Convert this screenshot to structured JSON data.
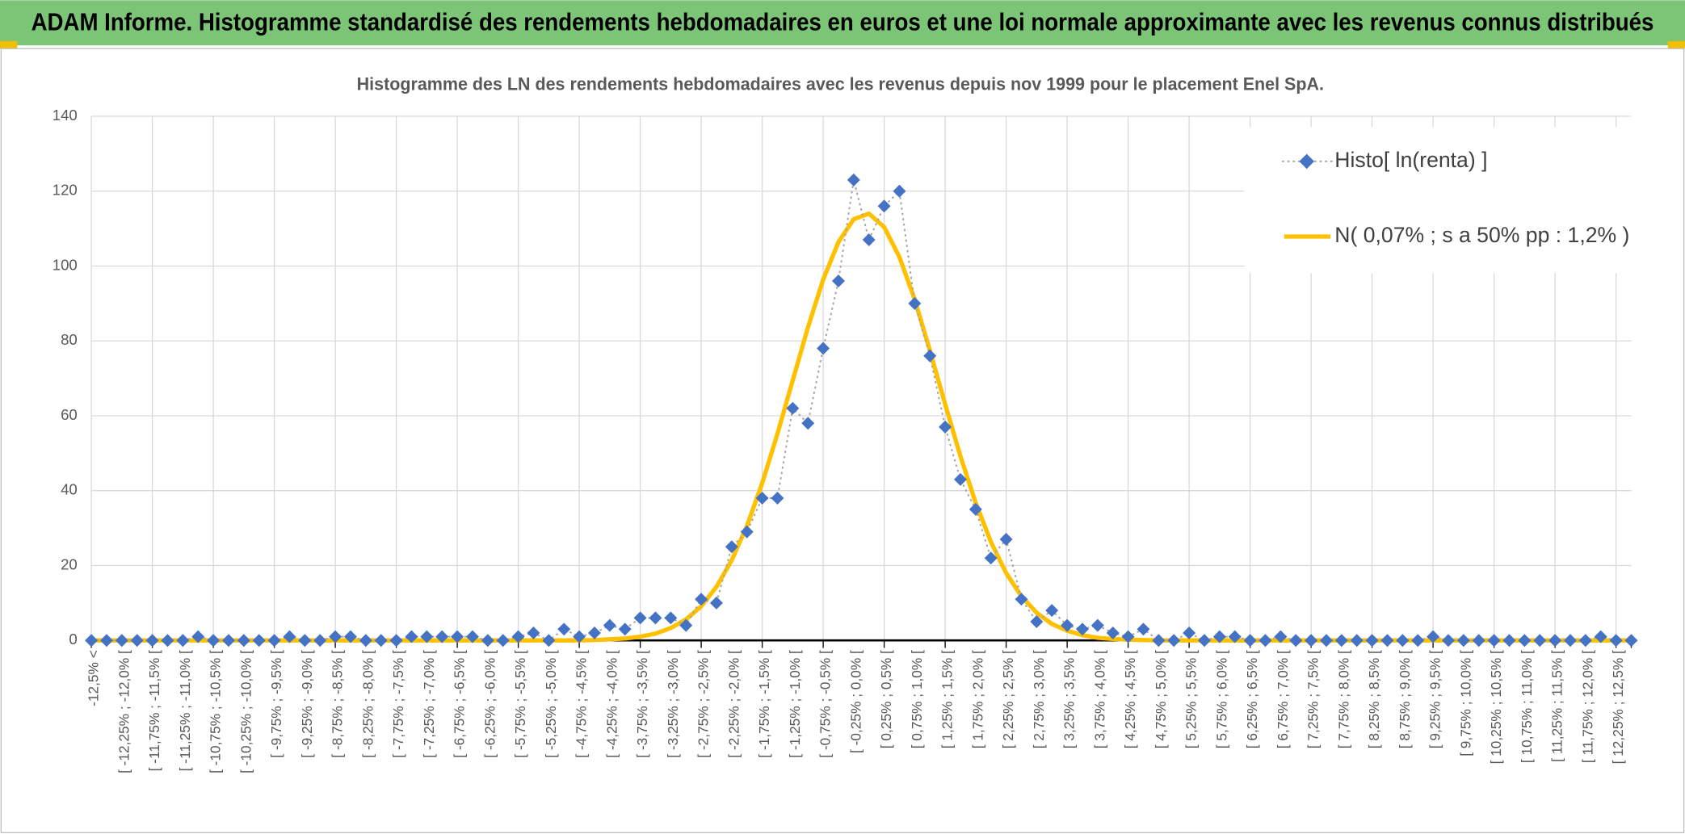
{
  "header": {
    "title": "ADAM Informe. Histogramme standardisé des rendements hebdomadaires en euros et une loi normale approximante avec les revenus connus distribués"
  },
  "chart_data": {
    "type": "line",
    "title": "Histogramme des LN des rendements hebdomadaires avec les revenus depuis nov 1999 pour le placement Enel SpA.",
    "categories": [
      "-12,5% <",
      null,
      "[ -12,25% ; -12,0% [",
      null,
      "[ -11,75% ; -11,5% [",
      null,
      "[ -11,25% ; -11,0% [",
      null,
      "[ -10,75% ; -10,5% [",
      null,
      "[ -10,25% ; -10,0% [",
      null,
      "[ -9,75% ; -9,5% [",
      null,
      "[ -9,25% ; -9,0% [",
      null,
      "[ -8,75% ; -8,5% [",
      null,
      "[ -8,25% ; -8,0% [",
      null,
      "[ -7,75% ; -7,5% [",
      null,
      "[ -7,25% ; -7,0% [",
      null,
      "[ -6,75% ; -6,5% [",
      null,
      "[ -6,25% ; -6,0% [",
      null,
      "[ -5,75% ; -5,5% [",
      null,
      "[ -5,25% ; -5,0% [",
      null,
      "[ -4,75% ; -4,5% [",
      null,
      "[ -4,25% ; -4,0% [",
      null,
      "[ -3,75% ; -3,5% [",
      null,
      "[ -3,25% ; -3,0% [",
      null,
      "[ -2,75% ; -2,5% [",
      null,
      "[ -2,25% ; -2,0% [",
      null,
      "[ -1,75% ; -1,5% [",
      null,
      "[ -1,25% ; -1,0% [",
      null,
      "[ -0,75% ; -0,5% [",
      null,
      "[ -0,25% ; 0,0% [",
      null,
      "[ 0,25% ; 0,5% [",
      null,
      "[ 0,75% ; 1,0% [",
      null,
      "[ 1,25% ; 1,5% [",
      null,
      "[ 1,75% ; 2,0% [",
      null,
      "[ 2,25% ; 2,5% [",
      null,
      "[ 2,75% ; 3,0% [",
      null,
      "[ 3,25% ; 3,5% [",
      null,
      "[ 3,75% ; 4,0% [",
      null,
      "[ 4,25% ; 4,5% [",
      null,
      "[ 4,75% ; 5,0% [",
      null,
      "[ 5,25% ; 5,5% [",
      null,
      "[ 5,75% ; 6,0% [",
      null,
      "[ 6,25% ; 6,5% [",
      null,
      "[ 6,75% ; 7,0% [",
      null,
      "[ 7,25% ; 7,5% [",
      null,
      "[ 7,75% ; 8,0% [",
      null,
      "[ 8,25% ; 8,5% [",
      null,
      "[ 8,75% ; 9,0% [",
      null,
      "[ 9,25% ; 9,5% [",
      null,
      "[ 9,75% ; 10,0% [",
      null,
      "[ 10,25% ; 10,5% [",
      null,
      "[ 10,75% ; 11,0% [",
      null,
      "[ 11,25% ; 11,5% [",
      null,
      "[ 11,75% ; 12,0% [",
      null,
      "[ 12,25% ; 12,5% [",
      null
    ],
    "series": [
      {
        "name": "Histo[ ln(renta) ]",
        "color": "#4472c4",
        "line_color": "#a5a5a5",
        "marker": "diamond",
        "line_style": "dotted",
        "values": [
          0,
          0,
          0,
          0,
          0,
          0,
          0,
          1,
          0,
          0,
          0,
          0,
          0,
          1,
          0,
          0,
          1,
          1,
          0,
          0,
          0,
          1,
          1,
          1,
          1,
          1,
          0,
          0,
          1,
          2,
          0,
          3,
          1,
          2,
          4,
          3,
          6,
          6,
          6,
          4,
          11,
          10,
          25,
          29,
          38,
          38,
          62,
          58,
          78,
          96,
          123,
          107,
          116,
          120,
          90,
          76,
          57,
          43,
          35,
          22,
          27,
          11,
          5,
          8,
          4,
          3,
          4,
          2,
          1,
          3,
          0,
          0,
          2,
          0,
          1,
          1,
          0,
          0,
          1,
          0,
          0,
          0,
          0,
          0,
          0,
          0,
          0,
          0,
          1,
          0,
          0,
          0,
          0,
          0,
          0,
          0,
          0,
          0,
          0,
          1,
          0,
          0
        ]
      },
      {
        "name": "N( 0,07% ; s a 50% pp : 1,2% )",
        "color": "#ffc000",
        "marker": "none",
        "line_style": "solid",
        "values": [
          0,
          0,
          0,
          0,
          0,
          0,
          0,
          0,
          0,
          0,
          0,
          0,
          0,
          0,
          0,
          0,
          0,
          0,
          0,
          0,
          0,
          0,
          0,
          0,
          0,
          0,
          0,
          0,
          0,
          0,
          0,
          0,
          0,
          0.1,
          0.3,
          0.5,
          1.0,
          1.8,
          3.3,
          5.6,
          9.1,
          14.3,
          21.4,
          30.6,
          42.0,
          55.2,
          69.4,
          83.6,
          96.4,
          106.4,
          112.5,
          114.0,
          110.4,
          102.4,
          91.1,
          77.4,
          63.1,
          49.2,
          36.8,
          26.3,
          18.0,
          11.8,
          7.4,
          4.4,
          2.6,
          1.4,
          0.7,
          0.4,
          0.2,
          0.1,
          0,
          0,
          0,
          0,
          0,
          0,
          0,
          0,
          0,
          0,
          0,
          0,
          0,
          0,
          0,
          0,
          0,
          0,
          0,
          0,
          0,
          0,
          0,
          0,
          0,
          0,
          0,
          0,
          0,
          0,
          0,
          0
        ]
      }
    ],
    "ylim": [
      0,
      140
    ],
    "yticks": [
      0,
      20,
      40,
      60,
      80,
      100,
      120,
      140
    ],
    "grid": true,
    "legend": "top-right"
  }
}
